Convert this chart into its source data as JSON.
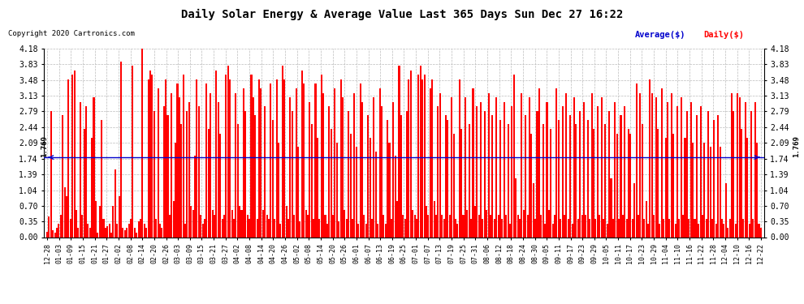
{
  "title": "Daily Solar Energy & Average Value Last 365 Days Sun Dec 27 16:22",
  "copyright": "Copyright 2020 Cartronics.com",
  "legend_average": "Average($)",
  "legend_daily": "Daily($)",
  "average_value": 1.769,
  "ylim": [
    0.0,
    4.18
  ],
  "yticks": [
    0.0,
    0.35,
    0.7,
    1.04,
    1.39,
    1.74,
    2.09,
    2.44,
    2.79,
    3.13,
    3.48,
    3.83,
    4.18
  ],
  "bar_color": "#ff0000",
  "average_line_color": "#0000cc",
  "background_color": "#ffffff",
  "grid_color": "#bbbbbb",
  "title_color": "#000000",
  "copyright_color": "#000000",
  "legend_avg_color": "#0000cc",
  "legend_daily_color": "#ff0000",
  "average_label_color": "#000000",
  "xtick_labels": [
    "12-28",
    "01-03",
    "01-09",
    "01-15",
    "01-21",
    "01-27",
    "02-02",
    "02-08",
    "02-14",
    "02-20",
    "02-26",
    "03-03",
    "03-09",
    "03-15",
    "03-21",
    "03-27",
    "04-02",
    "04-08",
    "04-14",
    "04-20",
    "04-26",
    "05-02",
    "05-08",
    "05-14",
    "05-20",
    "05-26",
    "06-01",
    "06-07",
    "06-13",
    "06-19",
    "06-25",
    "07-01",
    "07-07",
    "07-13",
    "07-19",
    "07-25",
    "07-31",
    "08-06",
    "08-12",
    "08-18",
    "08-24",
    "08-30",
    "09-05",
    "09-11",
    "09-17",
    "09-23",
    "09-29",
    "10-05",
    "10-11",
    "10-17",
    "10-23",
    "10-29",
    "11-04",
    "11-10",
    "11-16",
    "11-22",
    "11-28",
    "12-04",
    "12-10",
    "12-16",
    "12-22"
  ],
  "values": [
    0.12,
    0.45,
    2.8,
    0.15,
    0.1,
    0.2,
    0.3,
    0.5,
    2.7,
    1.1,
    0.9,
    3.5,
    0.4,
    3.6,
    3.7,
    0.6,
    0.2,
    3.0,
    0.5,
    2.4,
    2.9,
    0.3,
    0.2,
    2.2,
    3.1,
    0.8,
    0.1,
    0.7,
    2.6,
    0.4,
    0.2,
    0.25,
    0.3,
    0.1,
    0.7,
    1.5,
    0.3,
    0.9,
    3.9,
    0.2,
    0.15,
    0.2,
    0.3,
    0.4,
    3.8,
    0.2,
    0.1,
    0.35,
    0.4,
    4.18,
    0.3,
    0.2,
    3.5,
    3.7,
    3.6,
    2.8,
    0.4,
    3.3,
    0.3,
    0.2,
    2.9,
    3.5,
    2.7,
    0.5,
    3.2,
    0.8,
    2.1,
    3.4,
    3.1,
    2.5,
    3.6,
    0.3,
    2.8,
    3.0,
    0.7,
    0.6,
    1.8,
    3.5,
    2.9,
    0.5,
    0.3,
    0.4,
    3.4,
    2.4,
    3.2,
    0.6,
    0.5,
    3.7,
    3.0,
    2.3,
    0.4,
    0.5,
    3.6,
    3.8,
    3.5,
    0.6,
    0.4,
    3.2,
    2.5,
    0.7,
    0.6,
    3.3,
    2.8,
    0.5,
    0.4,
    3.6,
    3.1,
    2.7,
    0.4,
    3.5,
    3.3,
    0.6,
    2.9,
    0.5,
    0.4,
    3.4,
    2.6,
    0.4,
    3.5,
    2.1,
    0.3,
    3.8,
    3.5,
    0.7,
    0.4,
    3.1,
    2.8,
    0.5,
    3.3,
    2.0,
    0.35,
    3.7,
    3.4,
    0.6,
    0.5,
    3.0,
    2.5,
    0.4,
    3.4,
    2.2,
    0.4,
    3.6,
    3.2,
    0.5,
    0.3,
    2.9,
    2.4,
    0.5,
    3.3,
    2.1,
    0.35,
    3.5,
    3.1,
    0.6,
    0.4,
    2.8,
    2.3,
    0.4,
    3.2,
    2.0,
    0.3,
    3.4,
    3.0,
    0.5,
    0.3,
    2.7,
    2.2,
    0.4,
    3.1,
    1.9,
    0.3,
    3.3,
    2.9,
    0.5,
    0.3,
    2.6,
    2.1,
    0.4,
    3.0,
    1.8,
    0.8,
    3.8,
    2.7,
    0.5,
    0.4,
    2.8,
    3.5,
    3.7,
    0.6,
    0.5,
    0.4,
    3.6,
    3.8,
    3.5,
    3.6,
    0.7,
    0.5,
    3.3,
    3.5,
    0.8,
    0.5,
    2.9,
    3.2,
    0.5,
    0.4,
    2.7,
    2.6,
    0.5,
    3.1,
    2.3,
    0.4,
    0.3,
    3.5,
    2.4,
    0.5,
    3.1,
    0.6,
    2.5,
    0.4,
    3.3,
    0.7,
    2.9,
    0.5,
    3.0,
    0.4,
    2.8,
    0.6,
    3.2,
    0.5,
    2.7,
    0.4,
    3.1,
    0.5,
    2.6,
    0.4,
    3.0,
    0.5,
    2.5,
    0.3,
    2.9,
    3.6,
    1.3,
    0.5,
    0.4,
    3.2,
    0.6,
    2.7,
    0.5,
    3.1,
    2.3,
    1.2,
    0.4,
    2.8,
    3.3,
    0.5,
    2.5,
    0.3,
    3.0,
    0.6,
    2.4,
    0.3,
    0.5,
    3.3,
    2.6,
    0.4,
    2.9,
    0.5,
    3.2,
    0.4,
    2.7,
    0.3,
    3.1,
    2.5,
    0.4,
    2.8,
    0.5,
    3.0,
    0.5,
    2.6,
    0.4,
    3.2,
    2.4,
    0.4,
    2.9,
    0.5,
    3.1,
    0.4,
    2.5,
    0.3,
    2.8,
    1.3,
    0.4,
    3.0,
    2.3,
    0.4,
    2.7,
    0.5,
    2.9,
    0.4,
    2.4,
    2.3,
    0.4,
    1.2,
    3.4,
    0.5,
    3.2,
    2.5,
    0.4,
    0.8,
    0.3,
    3.5,
    3.2,
    0.5,
    3.1,
    2.4,
    0.3,
    3.3,
    0.4,
    2.2,
    3.0,
    0.4,
    3.2,
    2.3,
    0.3,
    2.9,
    0.4,
    3.1,
    0.5,
    2.2,
    2.8,
    0.4,
    3.0,
    2.1,
    0.4,
    2.7,
    0.3,
    2.9,
    0.5,
    2.1,
    0.4,
    2.8,
    2.0,
    0.4,
    2.6,
    0.3,
    2.7,
    2.0,
    0.4,
    0.3,
    1.2,
    0.2,
    0.4,
    3.2,
    2.8,
    0.3,
    3.2,
    3.1,
    2.4,
    0.4,
    3.0,
    2.2,
    0.3,
    2.8,
    0.4,
    3.0,
    2.1,
    0.3,
    0.2
  ]
}
